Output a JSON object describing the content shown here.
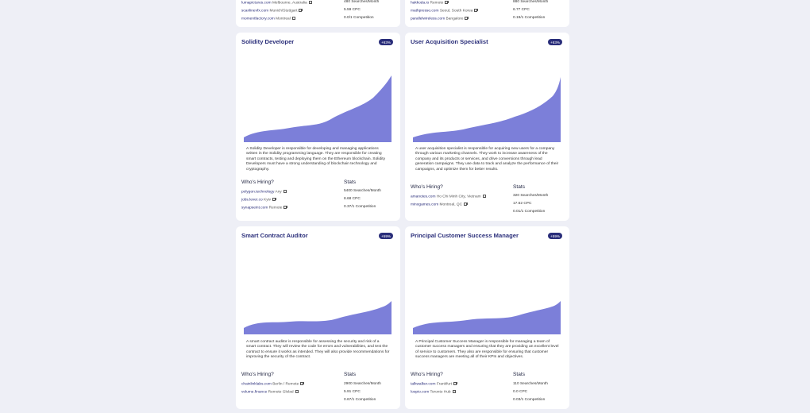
{
  "top_left": {
    "rows": [
      {
        "company": "lumapictures.com",
        "location": "Melbourne, Australia"
      },
      {
        "company": "scanlinevfx.com",
        "location": "Munich/Stuttgart"
      },
      {
        "company": "momentfactory.com",
        "location": "Montreal"
      }
    ],
    "stats": [
      "480 Searches/Month",
      "5.59 CPC",
      "0.0/1 Competition"
    ]
  },
  "top_right": {
    "rows": [
      {
        "company": "hakkoda.io",
        "location": "Remote"
      },
      {
        "company": "mathpresso.com",
        "location": "Seoul, South Korea"
      },
      {
        "company": "parallelwireless.com",
        "location": "Bangalore"
      }
    ],
    "stats": [
      "880 Searches/Month",
      "6.77 CPC",
      "0.19/1 Competition"
    ]
  },
  "cards": [
    {
      "title": "Solidity Developer",
      "badge": "+63%",
      "description": "A Solidity Developer is responsible for developing and managing applications written in the Solidity programming language. They are responsible for creating smart contracts, testing and deploying them on the Ethereum blockchain. Solidity Developers must have a strong understanding of blockchain technology and cryptography.",
      "who_label": "Who's Hiring?",
      "stats_label": "Stats",
      "hiring": [
        {
          "company": "polygon.technology",
          "location": "Any"
        },
        {
          "company": "jobs.lever.co",
          "location": "Kyiv"
        },
        {
          "company": "synapseint.com",
          "location": "Remote"
        }
      ],
      "stats": [
        "5400 Searches/Month",
        "8.68 CPC",
        "0.37/1 Competition"
      ]
    },
    {
      "title": "User Acquisition Specialist",
      "badge": "+63%",
      "description": "A user acquisition specialist is responsible for acquiring new users for a company through various marketing channels. They work to increase awareness of the company and its products or services, and drive conversions through lead generation campaigns. They use data to track and analyze the performance of their campaigns, and optimize them for better results.",
      "who_label": "Who's Hiring?",
      "stats_label": "Stats",
      "hiring": [
        {
          "company": "amanotes.com",
          "location": "Ho Chi Minh City, Vietnam"
        },
        {
          "company": "minogames.com",
          "location": "Montreal, QC"
        }
      ],
      "stats": [
        "320 Searches/Month",
        "17.62 CPC",
        "0.01/1 Competition"
      ]
    },
    {
      "title": "Smart Contract Auditor",
      "badge": "+59%",
      "description": "A smart contract auditor is responsible for assessing the security and risk of a smart contract. They will review the code for errors and vulnerabilities, and test the contract to ensure it works as intended. They will also provide recommendations for improving the security of the contract.",
      "who_label": "Who's Hiring?",
      "stats_label": "Stats",
      "hiring": [
        {
          "company": "chainlinklabs.com",
          "location": "Berlin / Remote"
        },
        {
          "company": "volume.finance",
          "location": "Remote Global"
        }
      ],
      "stats": [
        "2900 Searches/Month",
        "5.91 CPC",
        "0.67/1 Competition"
      ]
    },
    {
      "title": "Principal Customer Success Manager",
      "badge": "+59%",
      "description": "A Principal Customer Success Manager is responsible for managing a team of customer success managers and ensuring that they are providing an excellent level of service to customers. They also are responsible for ensuring that customer success managers are meeting all of their KPIs and objectives.",
      "who_label": "Who's Hiring?",
      "stats_label": "Stats",
      "hiring": [
        {
          "company": "talkwalker.com",
          "location": "Frankfurt"
        },
        {
          "company": "loopio.com",
          "location": "Toronto Hub"
        }
      ],
      "stats": [
        "110 Searches/Month",
        "0.0 CPC",
        "0.03/1 Competition"
      ]
    }
  ],
  "colors": {
    "accent": "#2a2e7a",
    "area_fill": "#7c7fd9",
    "background": "#eeeff6"
  }
}
